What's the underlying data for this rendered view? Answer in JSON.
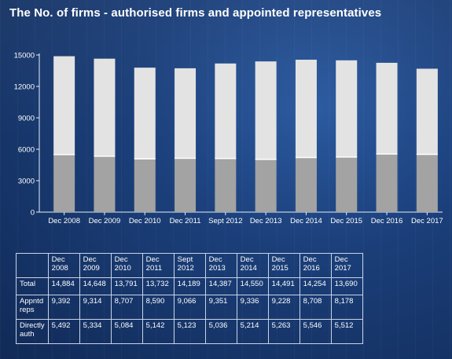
{
  "title": "The No. of firms - authorised firms and appointed representatives",
  "chart_data": {
    "type": "bar",
    "stacked": true,
    "categories": [
      "Dec 2008",
      "Dec 2009",
      "Dec 2010",
      "Dec 2011",
      "Sept 2012",
      "Dec 2013",
      "Dec 2014",
      "Dec 2015",
      "Dec 2016",
      "Dec 2017"
    ],
    "series": [
      {
        "values": [
          5492,
          5334,
          5084,
          5142,
          5123,
          5036,
          5214,
          5263,
          5546,
          5512
        ]
      },
      {
        "values": [
          9392,
          9314,
          8707,
          8590,
          9066,
          9351,
          9336,
          9228,
          8708,
          8178
        ]
      }
    ],
    "totals": [
      14884,
      14648,
      13791,
      13732,
      14189,
      14387,
      14550,
      14491,
      14254,
      13690
    ],
    "yticks": [
      0,
      3000,
      6000,
      9000,
      12000,
      15000
    ],
    "ylim": [
      0,
      15000
    ],
    "colors": {
      "lower": "#a3a3a3",
      "upper": "#e3e3e3",
      "separator": "#ffffff",
      "axis": "#e8eef8"
    }
  },
  "table": {
    "headers": [
      [
        "",
        ""
      ],
      [
        "Dec",
        "2008"
      ],
      [
        "Dec",
        "2009"
      ],
      [
        "Dec",
        "2010"
      ],
      [
        "Dec",
        "2011"
      ],
      [
        "Sept",
        "2012"
      ],
      [
        "Dec",
        "2013"
      ],
      [
        "Dec",
        "2014"
      ],
      [
        "Dec",
        "2015"
      ],
      [
        "Dec",
        "2016"
      ],
      [
        "Dec",
        "2017"
      ]
    ],
    "rows": [
      {
        "label": [
          "Total"
        ],
        "tall": false,
        "values": [
          "14,884",
          "14,648",
          "13,791",
          "13,732",
          "14,189",
          "14,387",
          "14,550",
          "14,491",
          "14,254",
          "13,690"
        ]
      },
      {
        "label": [
          "Appntd",
          "reps"
        ],
        "tall": true,
        "values": [
          "9,392",
          "9,314",
          "8,707",
          "8,590",
          "9,066",
          "9,351",
          "9,336",
          "9,228",
          "8,708",
          "8,178"
        ]
      },
      {
        "label": [
          "Directly",
          "auth"
        ],
        "tall": true,
        "values": [
          "5,492",
          "5,334",
          "5,084",
          "5,142",
          "5,123",
          "5,036",
          "5,214",
          "5,263",
          "5,546",
          "5,512"
        ]
      }
    ]
  }
}
